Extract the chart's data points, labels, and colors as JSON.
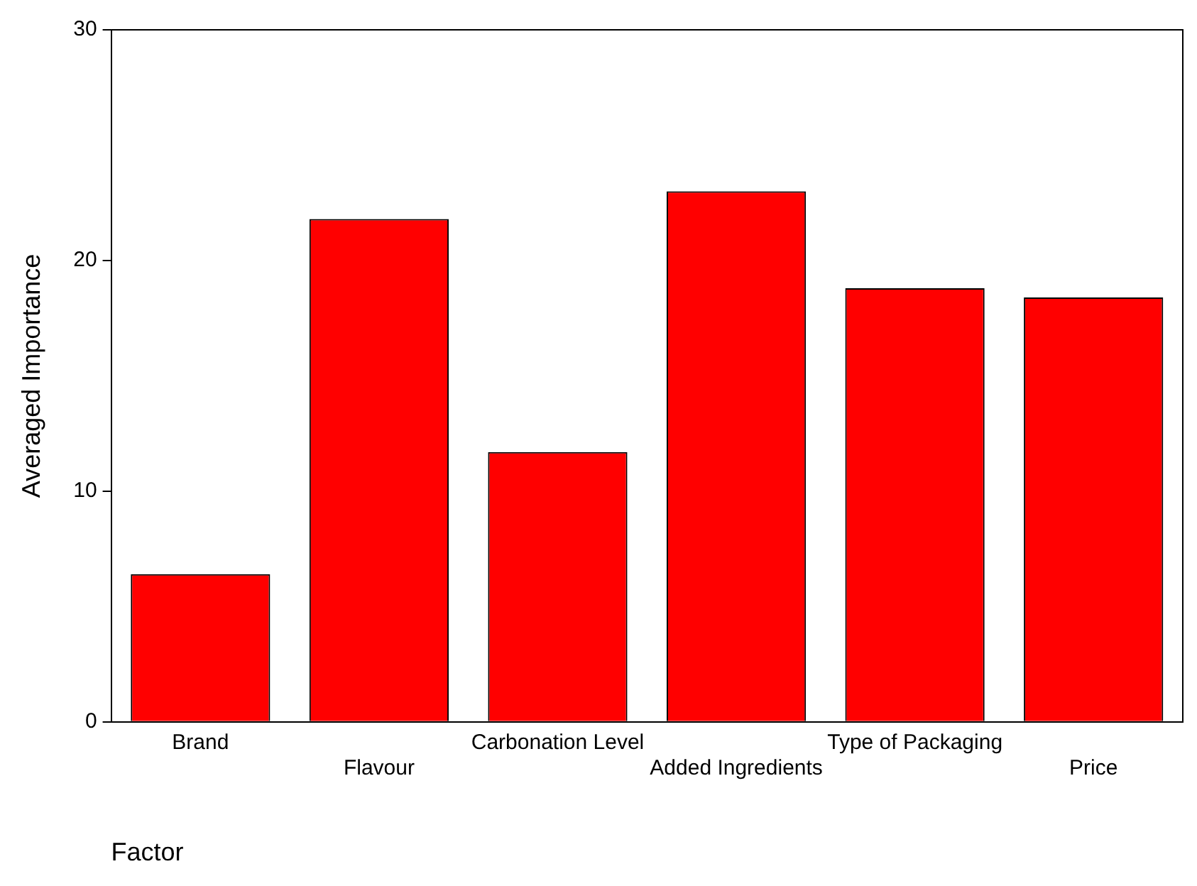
{
  "chart_data": {
    "type": "bar",
    "xlabel": "Factor",
    "ylabel": "Averaged Importance",
    "categories": [
      "Brand",
      "Flavour",
      "Carbonation Level",
      "Added Ingredients",
      "Type of Packaging",
      "Price"
    ],
    "values": [
      6.4,
      21.8,
      11.7,
      23.0,
      18.8,
      18.4
    ],
    "color": "#ff0000",
    "ylim": [
      0,
      30
    ],
    "yticks": [
      0,
      10,
      20,
      30
    ],
    "grid": false,
    "legend": false
  }
}
